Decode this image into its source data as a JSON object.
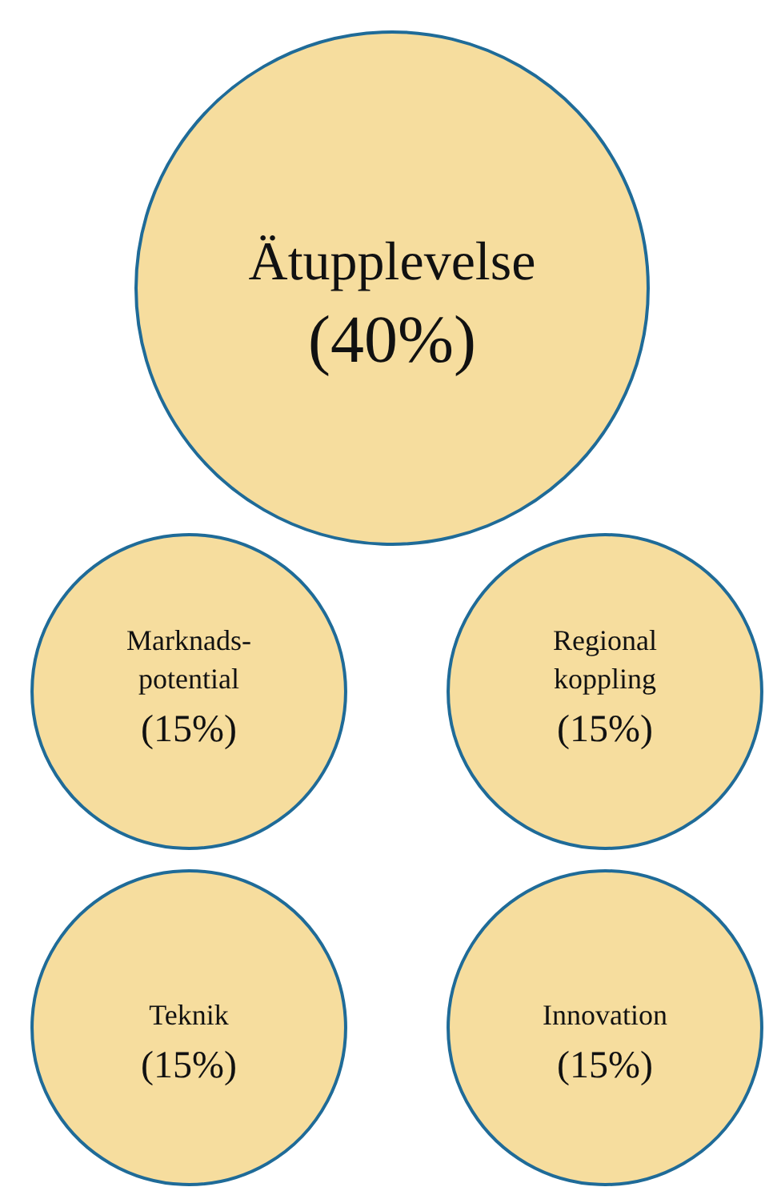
{
  "chart_data": {
    "type": "other",
    "categories": [
      "Ätupplevelse",
      "Marknads-\npotential",
      "Regional\nkoppling",
      "Teknik",
      "Innovation"
    ],
    "values": [
      40,
      15,
      15,
      15,
      15
    ],
    "value_labels": [
      "(40%)",
      "(15%)",
      "(15%)",
      "(15%)",
      "(15%)"
    ],
    "colors": [
      "#f6dd9e",
      "#f6dd9e",
      "#f6dd9e",
      "#f6dd9e",
      "#f6dd9e"
    ]
  }
}
